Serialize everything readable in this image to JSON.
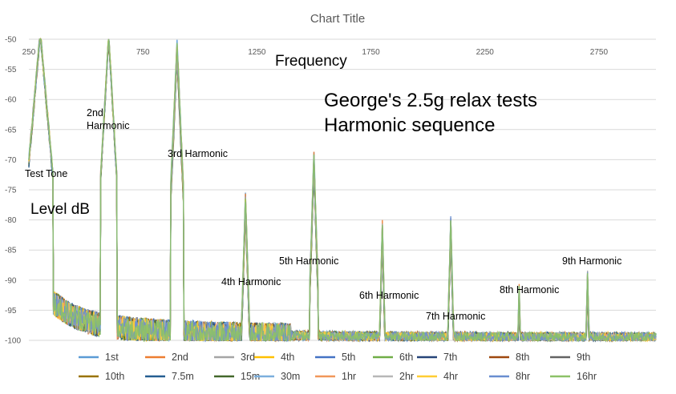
{
  "chart_data": {
    "type": "line",
    "title": "Chart Title",
    "xlabel": "Frequency",
    "ylabel": "Level dB",
    "xlim": [
      250,
      3000
    ],
    "ylim": [
      -100,
      -50
    ],
    "x_ticks": [
      "250",
      "750",
      "1250",
      "1750",
      "2250",
      "2750"
    ],
    "y_ticks": [
      "-50",
      "-55",
      "-60",
      "-65",
      "-70",
      "-75",
      "-80",
      "-85",
      "-90",
      "-95",
      "-100"
    ],
    "grid": true,
    "legend_position": "bottom",
    "annotations": [
      {
        "text": "George's 2.5g relax tests",
        "style": "large"
      },
      {
        "text": "Harmonic sequence",
        "style": "large"
      },
      {
        "text": "Test Tone",
        "style": "small"
      },
      {
        "text": "2nd",
        "style": "small"
      },
      {
        "text": "Harmonic",
        "style": "small"
      },
      {
        "text": "3rd Harmonic",
        "style": "small"
      },
      {
        "text": "4th Harmonic",
        "style": "small"
      },
      {
        "text": "5th Harmonic",
        "style": "small"
      },
      {
        "text": "6th Harmonic",
        "style": "small"
      },
      {
        "text": "7th Harmonic",
        "style": "small"
      },
      {
        "text": "8th Harmonic",
        "style": "small"
      },
      {
        "text": "9th Harmonic",
        "style": "small"
      }
    ],
    "peaks": [
      {
        "label": "Test Tone",
        "freq": 300,
        "level": -50
      },
      {
        "label": "2nd Harmonic",
        "freq": 600,
        "level": -50.5
      },
      {
        "label": "3rd Harmonic",
        "freq": 900,
        "level": -54
      },
      {
        "label": "4th Harmonic",
        "freq": 1200,
        "level": -79.5
      },
      {
        "label": "5th Harmonic",
        "freq": 1500,
        "level": -72.5
      },
      {
        "label": "6th Harmonic",
        "freq": 1800,
        "level": -84
      },
      {
        "label": "7th Harmonic",
        "freq": 2100,
        "level": -83
      },
      {
        "label": "8th Harmonic",
        "freq": 2400,
        "level": -94.5
      },
      {
        "label": "9th Harmonic",
        "freq": 2700,
        "level": -92
      }
    ],
    "series": [
      {
        "name": "1st",
        "color": "#5B9BD5"
      },
      {
        "name": "2nd",
        "color": "#ED7D31"
      },
      {
        "name": "3rd",
        "color": "#A5A5A5"
      },
      {
        "name": "4th",
        "color": "#FFC000"
      },
      {
        "name": "5th",
        "color": "#4472C4"
      },
      {
        "name": "6th",
        "color": "#70AD47"
      },
      {
        "name": "7th",
        "color": "#264478"
      },
      {
        "name": "8th",
        "color": "#9E480E"
      },
      {
        "name": "9th",
        "color": "#636363"
      },
      {
        "name": "10th",
        "color": "#997300"
      },
      {
        "name": "7.5m",
        "color": "#255E91"
      },
      {
        "name": "15m",
        "color": "#43682B"
      },
      {
        "name": "30m",
        "color": "#7CAFDD"
      },
      {
        "name": "1hr",
        "color": "#F1975A"
      },
      {
        "name": "2hr",
        "color": "#B7B7B7"
      },
      {
        "name": "4hr",
        "color": "#FFCD33"
      },
      {
        "name": "8hr",
        "color": "#698ED0"
      },
      {
        "name": "16hr",
        "color": "#8CC168"
      }
    ]
  }
}
